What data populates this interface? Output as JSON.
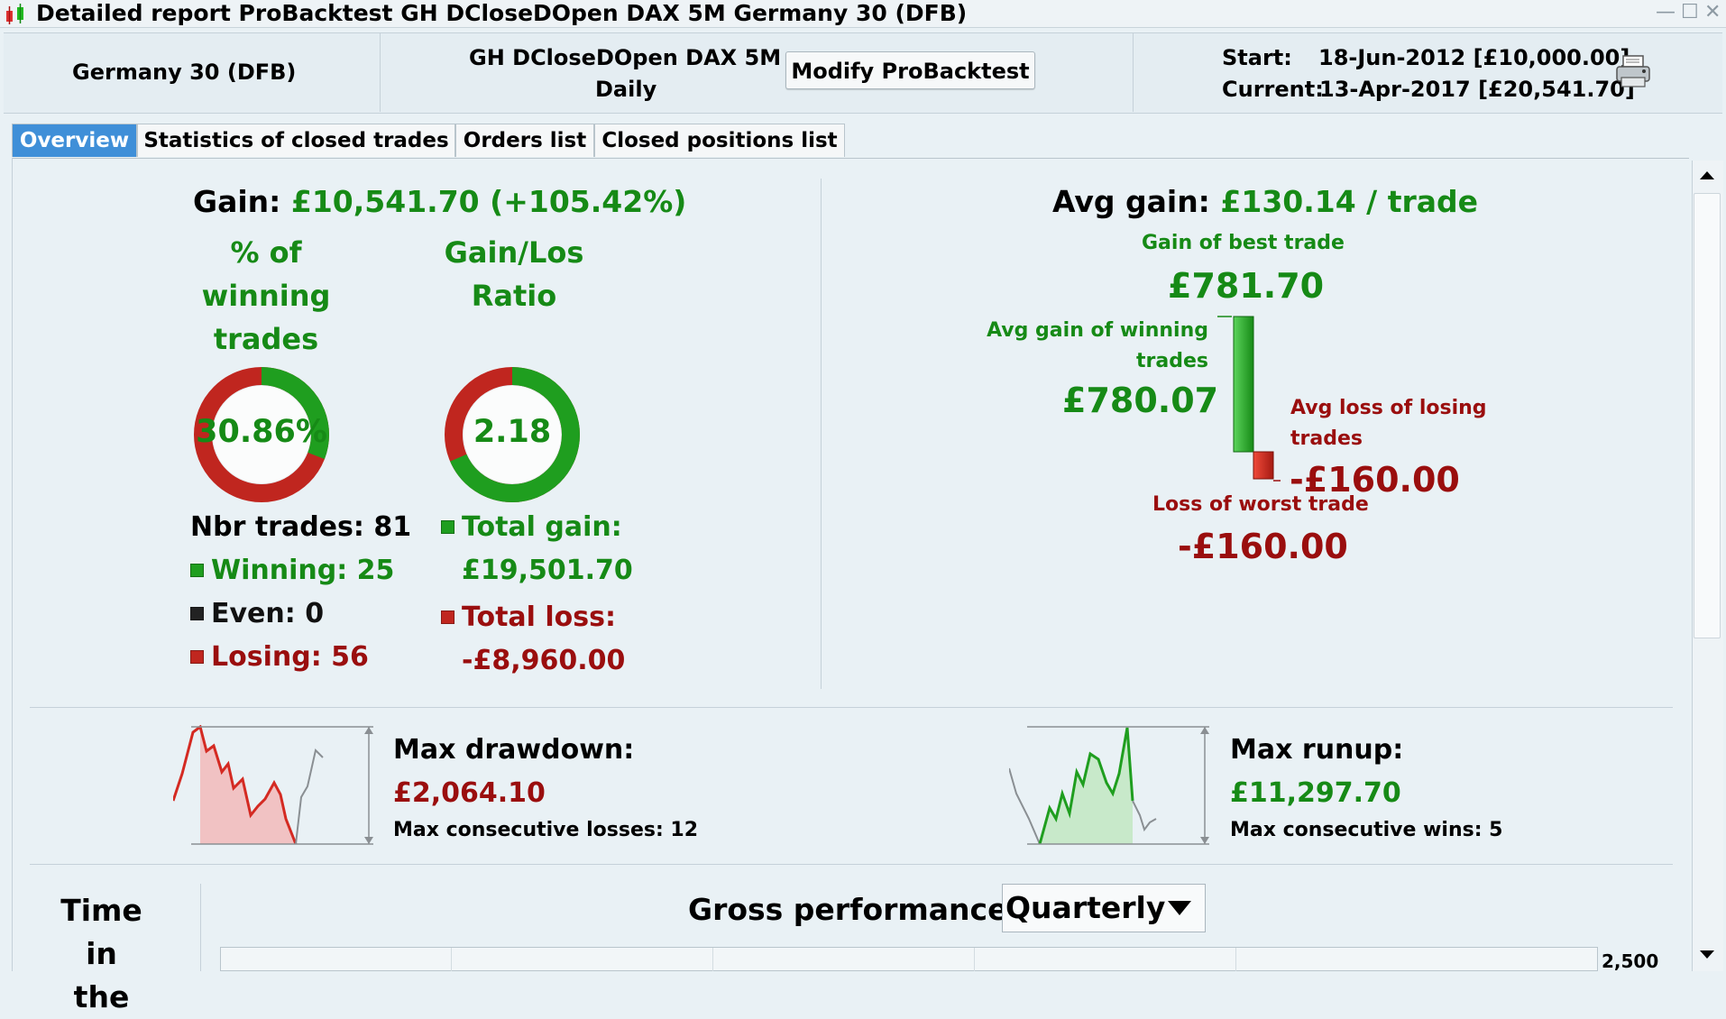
{
  "window": {
    "title": "Detailed report  ProBacktest  GH DCloseDOpen DAX 5M  Germany 30 (DFB)",
    "controls": [
      "—",
      "☐",
      "✕"
    ]
  },
  "header": {
    "instrument": "Germany 30 (DFB)",
    "system_name": "GH DCloseDOpen DAX 5M",
    "timeframe": "Daily",
    "modify_button": "Modify ProBacktest",
    "start_label": "Start:",
    "start_value": "18-Jun-2012 [£10,000.00]",
    "current_label": "Current:",
    "current_value": "13-Apr-2017 [£20,541.70]",
    "print_icon": "printer-icon"
  },
  "tabs": [
    {
      "label": "Overview",
      "active": true
    },
    {
      "label": "Statistics of closed trades",
      "active": false
    },
    {
      "label": "Orders list",
      "active": false
    },
    {
      "label": "Closed positions list",
      "active": false
    }
  ],
  "overview": {
    "gain_label": "Gain:",
    "gain_value": "£10,541.70",
    "gain_pct": "(+105.42%)",
    "winning_pct_title": [
      "% of",
      "winning",
      "trades"
    ],
    "winning_pct_value": "30.86%",
    "winning_fraction": 0.3086,
    "ratio_title": [
      "Gain/Los",
      "Ratio"
    ],
    "ratio_value": "2.18",
    "ratio_fraction": 0.685,
    "nbr_trades": "Nbr trades: 81",
    "winning": "Winning: 25",
    "even": "Even: 0",
    "losing": "Losing: 56",
    "total_gain_label": "Total gain:",
    "total_gain_value": "£19,501.70",
    "total_loss_label": "Total loss:",
    "total_loss_value": "-£8,960.00",
    "colors": {
      "win": "#1f9e1f",
      "loss": "#c0261f",
      "even": "#222222"
    }
  },
  "avg": {
    "avg_gain_label": "Avg gain:",
    "avg_gain_value": "£130.14 / trade",
    "best_trade_label": "Gain of best trade",
    "best_trade_value": "£781.70",
    "avg_win_label_1": "Avg gain of winning",
    "avg_win_label_2": "trades",
    "avg_win_value": "£780.07",
    "avg_loss_label_1": "Avg loss of losing",
    "avg_loss_label_2": "trades",
    "avg_loss_value": "-£160.00",
    "worst_trade_label": "Loss of worst trade",
    "worst_trade_value": "-£160.00"
  },
  "drawdown": {
    "label": "Max drawdown:",
    "value": "£2,064.10",
    "consec_label": "Max consecutive losses: 12"
  },
  "runup": {
    "label": "Max runup:",
    "value": "£11,297.70",
    "consec_label": "Max consecutive wins: 5"
  },
  "bottom": {
    "time_in_label_1": "Time in",
    "time_in_label_2": "the",
    "gross_performance_label": "Gross performance",
    "period_select": "Quarterly",
    "axis_top_tick": "2,500"
  }
}
